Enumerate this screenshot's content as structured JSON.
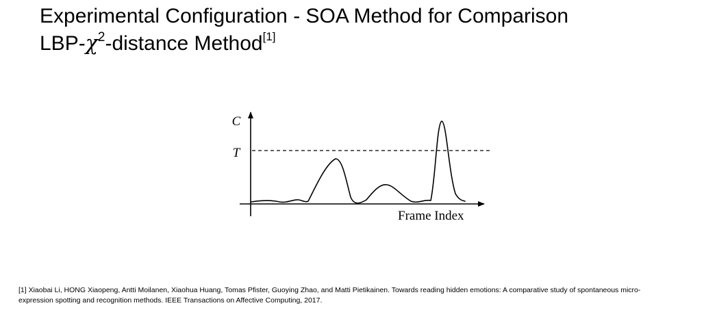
{
  "slide": {
    "title_line1": "Experimental Configuration - SOA Method for Comparison",
    "title_line2_prefix": "LBP-",
    "title_line2_symbol": "χ",
    "title_line2_exponent": "2",
    "title_line2_suffix": "-distance Method",
    "title_line2_ref": "[1]"
  },
  "diagram": {
    "y_axis_label": "C",
    "threshold_label": "T",
    "x_axis_label": "Frame Index"
  },
  "footnote": {
    "text": "[1] Xiaobai Li, HONG Xiaopeng, Antti Moilanen, Xiaohua Huang, Tomas Pfister, Guoying Zhao, and Matti Pietikainen. Towards reading hidden emotions: A comparative study of spontaneous micro-expression spotting and recognition methods. IEEE Transactions on Affective Computing, 2017."
  }
}
